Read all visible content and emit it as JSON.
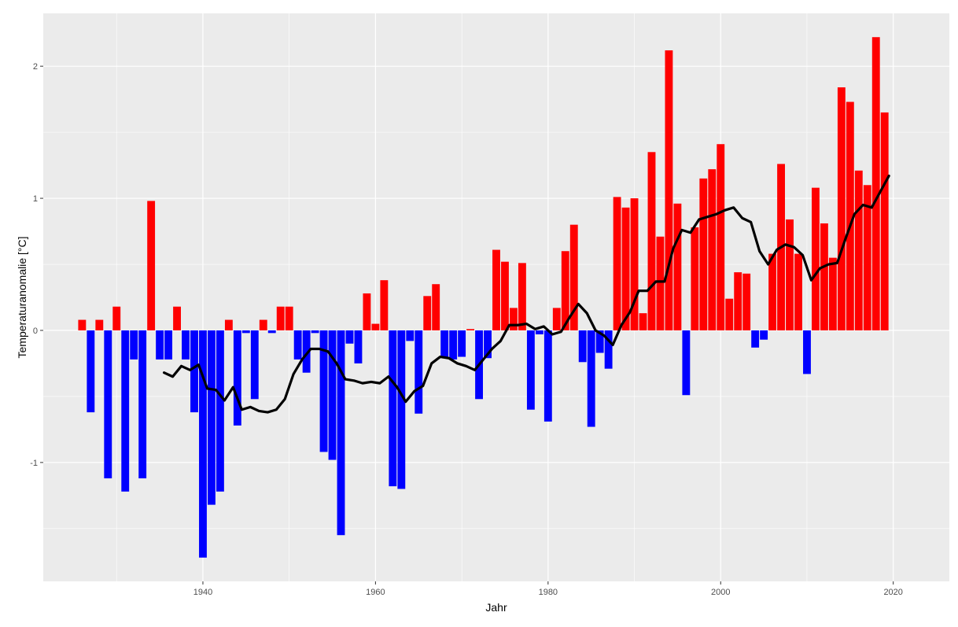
{
  "chart_data": {
    "type": "bar",
    "xlabel": "Jahr",
    "ylabel": "Temperaturanomalie [°C]",
    "xlim": [
      1921.5,
      2026.5
    ],
    "ylim": [
      -1.9,
      2.4
    ],
    "x_ticks": [
      1940,
      1960,
      1980,
      2000,
      2020
    ],
    "y_ticks": [
      -1,
      0,
      1,
      2
    ],
    "grid": true,
    "legend": "none",
    "colors": {
      "positive": "#ff0000",
      "negative": "#0000ff",
      "trend": "#000000",
      "panel": "#ebebeb",
      "grid": "#ffffff"
    },
    "years": [
      1926,
      1927,
      1928,
      1929,
      1930,
      1931,
      1932,
      1933,
      1934,
      1935,
      1936,
      1937,
      1938,
      1939,
      1940,
      1941,
      1942,
      1943,
      1944,
      1945,
      1946,
      1947,
      1948,
      1949,
      1950,
      1951,
      1952,
      1953,
      1954,
      1955,
      1956,
      1957,
      1958,
      1959,
      1960,
      1961,
      1962,
      1963,
      1964,
      1965,
      1966,
      1967,
      1968,
      1969,
      1970,
      1971,
      1972,
      1973,
      1974,
      1975,
      1976,
      1977,
      1978,
      1979,
      1980,
      1981,
      1982,
      1983,
      1984,
      1985,
      1986,
      1987,
      1988,
      1989,
      1990,
      1991,
      1992,
      1993,
      1994,
      1995,
      1996,
      1997,
      1998,
      1999,
      2000,
      2001,
      2002,
      2003,
      2004,
      2005,
      2006,
      2007,
      2008,
      2009,
      2010,
      2011,
      2012,
      2013,
      2014,
      2015,
      2016,
      2017,
      2018,
      2019
    ],
    "values": [
      0.08,
      -0.62,
      0.08,
      -1.12,
      0.18,
      -1.22,
      -0.22,
      -1.12,
      0.98,
      -0.22,
      -0.22,
      0.18,
      -0.22,
      -0.62,
      -1.72,
      -1.32,
      -1.22,
      0.08,
      -0.72,
      -0.02,
      -0.52,
      0.08,
      -0.02,
      0.18,
      0.18,
      -0.22,
      -0.32,
      -0.02,
      -0.92,
      -0.98,
      -1.55,
      -0.1,
      -0.25,
      0.28,
      0.05,
      0.38,
      -1.18,
      -1.2,
      -0.08,
      -0.63,
      0.26,
      0.35,
      -0.2,
      -0.22,
      -0.2,
      0.01,
      -0.52,
      -0.21,
      0.61,
      0.52,
      0.17,
      0.51,
      -0.6,
      -0.03,
      -0.69,
      0.17,
      0.6,
      0.8,
      -0.24,
      -0.73,
      -0.17,
      -0.29,
      1.01,
      0.93,
      1.0,
      0.13,
      1.35,
      0.71,
      2.12,
      0.96,
      -0.49,
      0.78,
      1.15,
      1.22,
      1.41,
      0.24,
      0.44,
      0.43,
      -0.13,
      -0.07,
      0.58,
      1.26,
      0.84,
      0.58,
      -0.33,
      1.08,
      0.81,
      0.55,
      1.84,
      1.73,
      1.21,
      1.1,
      2.22,
      1.65
    ],
    "trend": {
      "name": "",
      "x": [
        1935.5,
        1936.5,
        1937.5,
        1938.5,
        1939.5,
        1940.5,
        1941.5,
        1942.5,
        1943.5,
        1944.5,
        1945.5,
        1946.5,
        1947.5,
        1948.5,
        1949.5,
        1950.5,
        1951.5,
        1952.5,
        1953.5,
        1954.5,
        1955.5,
        1956.5,
        1957.5,
        1958.5,
        1959.5,
        1960.5,
        1961.5,
        1962.5,
        1963.5,
        1964.5,
        1965.5,
        1966.5,
        1967.5,
        1968.5,
        1969.5,
        1970.5,
        1971.5,
        1972.5,
        1973.5,
        1974.5,
        1975.5,
        1976.5,
        1977.5,
        1978.5,
        1979.5,
        1980.5,
        1981.5,
        1982.5,
        1983.5,
        1984.5,
        1985.5,
        1986.5,
        1987.5,
        1988.5,
        1989.5,
        1990.5,
        1991.5,
        1992.5,
        1993.5,
        1994.5,
        1995.5,
        1996.5,
        1997.5,
        1998.5,
        1999.5,
        2000.5,
        2001.5,
        2002.5,
        2003.5,
        2004.5,
        2005.5,
        2006.5,
        2007.5,
        2008.5,
        2009.5,
        2010.5,
        2011.5,
        2012.5,
        2013.5,
        2014.5,
        2015.5,
        2016.5,
        2017.5,
        2018.5,
        2019.5
      ],
      "y": [
        -0.32,
        -0.35,
        -0.27,
        -0.3,
        -0.26,
        -0.44,
        -0.45,
        -0.53,
        -0.43,
        -0.6,
        -0.58,
        -0.61,
        -0.62,
        -0.6,
        -0.52,
        -0.33,
        -0.22,
        -0.14,
        -0.14,
        -0.16,
        -0.25,
        -0.37,
        -0.38,
        -0.4,
        -0.39,
        -0.4,
        -0.35,
        -0.43,
        -0.54,
        -0.46,
        -0.42,
        -0.25,
        -0.2,
        -0.21,
        -0.25,
        -0.27,
        -0.3,
        -0.22,
        -0.14,
        -0.08,
        0.04,
        0.04,
        0.05,
        0.01,
        0.03,
        -0.03,
        -0.01,
        0.1,
        0.2,
        0.13,
        0.0,
        -0.04,
        -0.11,
        0.04,
        0.14,
        0.3,
        0.3,
        0.37,
        0.37,
        0.62,
        0.76,
        0.74,
        0.84,
        0.86,
        0.88,
        0.91,
        0.93,
        0.85,
        0.82,
        0.6,
        0.5,
        0.61,
        0.65,
        0.63,
        0.57,
        0.38,
        0.47,
        0.5,
        0.51,
        0.7,
        0.88,
        0.95,
        0.93,
        1.05,
        1.17
      ]
    }
  }
}
